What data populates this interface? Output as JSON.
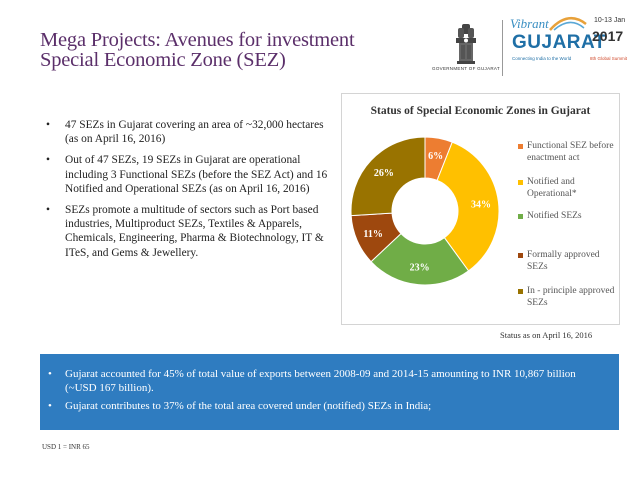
{
  "header": {
    "title_line1": "Mega Projects: Avenues for investment",
    "title_line2": "Special Economic Zone (SEZ)",
    "gov_label": "GOVERNMENT OF GUJARAT",
    "logo": {
      "vibrant": "Vibrant",
      "gujarat": "GUJARAT",
      "date": "10-13 Jan",
      "year": "2017",
      "tagline": "Connecting India to the World",
      "summit": "8th Global Summit"
    }
  },
  "bullets": [
    "47 SEZs in Gujarat covering an area of ~32,000 hectares (as on April 16, 2016)",
    "Out of 47 SEZs, 19 SEZs in Gujarat are operational including 3 Functional SEZs (before the SEZ Act) and 16 Notified and Operational SEZs (as on April 16, 2016)",
    "SEZs promote a multitude of sectors such as Port based industries, Multiproduct SEZs, Textiles & Apparels, Chemicals, Engineering, Pharma & Biotechnology, IT & ITeS, and Gems & Jewellery."
  ],
  "chart_data": {
    "type": "pie",
    "title": "Status of Special Economic Zones in Gujarat",
    "categories": [
      "Functional SEZ before enactment act",
      "Notified and Operational*",
      "Notified SEZs",
      "Formally approved SEZs",
      "In - principle approved SEZs"
    ],
    "values": [
      6,
      34,
      23,
      11,
      26
    ],
    "labels": [
      "6%",
      "34%",
      "23%",
      "11%",
      "26%"
    ],
    "colors": [
      "#ed7d31",
      "#ffc000",
      "#70ad47",
      "#9e480e",
      "#997300"
    ],
    "legend_position": "right"
  },
  "status_note": "Status as on April 16, 2016",
  "highlights": [
    "Gujarat accounted for 45% of total value of exports between 2008-09 and 2014-15 amounting to INR 10,867 billion (~USD 167 billion).",
    "Gujarat contributes to 37% of the total area covered under (notified) SEZs in India;"
  ],
  "footnote": "USD 1 = INR 65"
}
